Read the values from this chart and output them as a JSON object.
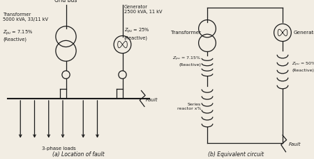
{
  "bg_color": "#f2ede3",
  "line_color": "#1a1a1a",
  "title_a": "(a) Location of fault",
  "title_b": "(b) Equivalent circuit",
  "text_grid_bus": "Grid bus",
  "text_3phase": "3-phase loads",
  "text_fault_a": "Fault",
  "text_transformer_b": "Transformer",
  "text_generator_b": "Generator",
  "text_fault_b": "Fault"
}
